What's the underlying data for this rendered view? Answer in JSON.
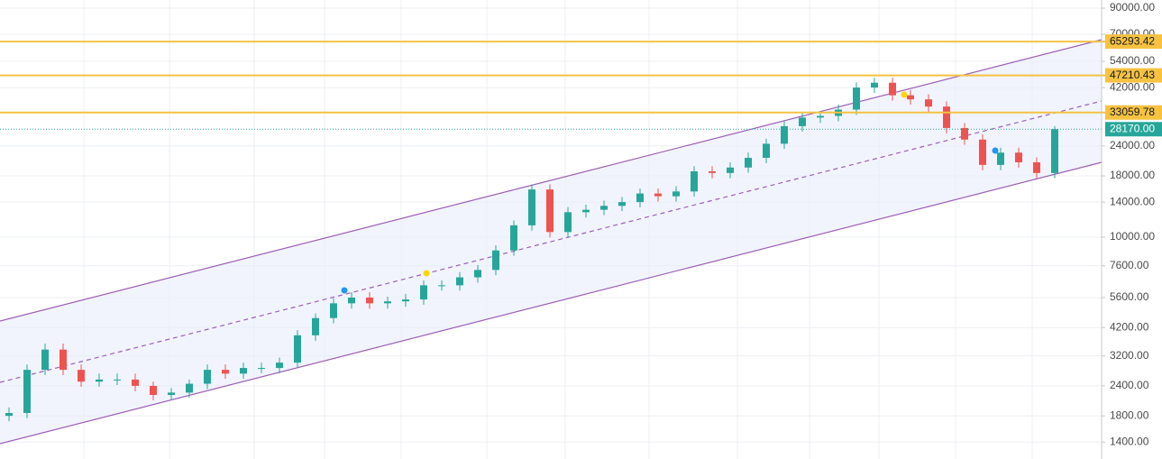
{
  "chart_data": {
    "type": "candlestick",
    "log_scale": true,
    "grid": true,
    "up_color": "#26a69a",
    "down_color": "#ef5350",
    "categories": [
      null,
      null,
      null,
      null,
      null,
      null,
      null,
      null,
      null,
      null,
      null,
      null,
      null,
      null,
      null,
      null,
      null,
      null,
      null,
      null,
      null,
      null,
      null,
      null,
      null,
      null,
      null,
      null,
      null,
      null,
      null,
      null,
      null,
      null,
      null,
      null,
      null,
      null,
      null,
      null,
      null,
      null,
      null,
      null,
      null,
      null,
      null,
      null,
      null,
      null,
      null,
      null,
      null,
      null,
      null,
      null,
      null,
      null,
      null
    ],
    "open": [
      1800,
      1850,
      2800,
      3400,
      2800,
      2500,
      2550,
      2550,
      2400,
      2200,
      2250,
      2450,
      2800,
      2700,
      2850,
      2850,
      3000,
      3900,
      4600,
      5300,
      5600,
      5300,
      5400,
      5500,
      6300,
      6300,
      6800,
      7300,
      8800,
      11200,
      15800,
      10500,
      12700,
      13000,
      13500,
      14000,
      15200,
      14800,
      15500,
      18800,
      18500,
      19500,
      21400,
      24500,
      29000,
      31500,
      32000,
      34000,
      42000,
      44000,
      39000,
      37500,
      35000,
      28500,
      25500,
      20000,
      22500,
      20500,
      18500
    ],
    "high": [
      1950,
      2950,
      3600,
      3600,
      2950,
      2700,
      2700,
      2700,
      2500,
      2350,
      2550,
      2950,
      2950,
      3000,
      3000,
      3150,
      4100,
      4800,
      5550,
      5900,
      5900,
      5650,
      5800,
      6600,
      6600,
      7150,
      7650,
      9250,
      11750,
      16600,
      16600,
      13350,
      13650,
      14200,
      14700,
      15950,
      15950,
      16300,
      19750,
      19750,
      20500,
      22500,
      25700,
      30450,
      33100,
      33600,
      35700,
      44100,
      46200,
      46200,
      40950,
      39400,
      36750,
      29900,
      26800,
      23600,
      23600,
      21500,
      29000
    ],
    "low": [
      1710,
      1760,
      2660,
      2660,
      2380,
      2380,
      2420,
      2280,
      2090,
      2090,
      2140,
      2330,
      2570,
      2570,
      2710,
      2710,
      2850,
      3700,
      4370,
      5030,
      5030,
      5030,
      5130,
      5230,
      5990,
      5990,
      6460,
      6940,
      8360,
      10640,
      9980,
      9980,
      12070,
      12350,
      12830,
      13300,
      14060,
      14060,
      14730,
      17580,
      17580,
      18530,
      20330,
      23280,
      27550,
      29930,
      30400,
      32300,
      39900,
      37050,
      35630,
      33250,
      27080,
      24230,
      19000,
      19000,
      19480,
      17580,
      17580
    ],
    "close": [
      1850,
      2800,
      3400,
      2800,
      2500,
      2550,
      2550,
      2400,
      2200,
      2250,
      2450,
      2800,
      2700,
      2850,
      2850,
      3000,
      3900,
      4600,
      5300,
      5600,
      5300,
      5400,
      5500,
      6300,
      6300,
      6800,
      7300,
      8800,
      11200,
      15800,
      10500,
      12700,
      13000,
      13500,
      14000,
      15200,
      14800,
      15500,
      18800,
      18500,
      19500,
      21400,
      24500,
      29000,
      31500,
      32000,
      34000,
      42000,
      44000,
      39000,
      37500,
      35000,
      28500,
      25500,
      20000,
      22500,
      20500,
      18500,
      28170
    ],
    "ylim": [
      1190,
      97300
    ],
    "yticks": [
      {
        "value": 1400,
        "label": "1400.00"
      },
      {
        "value": 1800,
        "label": "1800.00"
      },
      {
        "value": 2400,
        "label": "2400.00"
      },
      {
        "value": 3200,
        "label": "3200.00"
      },
      {
        "value": 4200,
        "label": "4200.00"
      },
      {
        "value": 5600,
        "label": "5600.00"
      },
      {
        "value": 7600,
        "label": "7600.00"
      },
      {
        "value": 10000,
        "label": "10000.00"
      },
      {
        "value": 14000,
        "label": "14000.00"
      },
      {
        "value": 18000,
        "label": "18000.00"
      },
      {
        "value": 24000,
        "label": "24000.00"
      },
      {
        "value": 42000,
        "label": "42000.00"
      },
      {
        "value": 54000,
        "label": "54000.00"
      },
      {
        "value": 70000,
        "label": "70000.00"
      },
      {
        "value": 90000,
        "label": "90000.00"
      }
    ],
    "levels": [
      65293.42,
      47210.43,
      33059.78
    ],
    "level_color": "#f5c242",
    "last_price": {
      "value": 28170,
      "label": "28170.00"
    },
    "last_price_color": "#26a69a"
  }
}
